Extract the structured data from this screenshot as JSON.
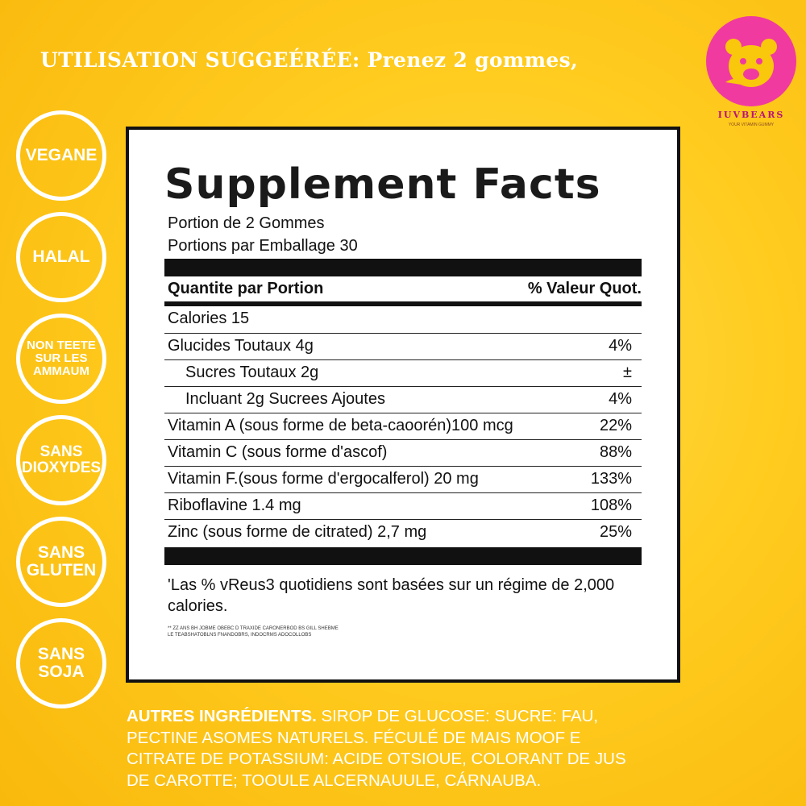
{
  "usage_text": "UTILISATION SUGGEÉRÉE: Prenez 2 gommes,",
  "brand": {
    "name": "IUVBEARS",
    "tagline": "YOUR VITAMIN GUMMY",
    "colors": {
      "circle": "#f03aa0",
      "text": "#b8127a"
    }
  },
  "badges": [
    {
      "lines": [
        "VEGANE"
      ]
    },
    {
      "lines": [
        "HALAL"
      ]
    },
    {
      "lines": [
        "NON TEETE",
        "SUR LES",
        "AMMAUM"
      ]
    },
    {
      "lines": [
        "SANS",
        "DIOXYDES"
      ]
    },
    {
      "lines": [
        "SANS",
        "GLUTEN"
      ]
    },
    {
      "lines": [
        "SANS",
        "SOJA"
      ]
    }
  ],
  "facts": {
    "title": "Supplement Facts",
    "serving_size": "Portion de 2 Gommes",
    "servings_per_container": "Portions par Emballage 30",
    "header_left": "Quantite par Portion",
    "header_right": "% Valeur Quot.",
    "rows": [
      {
        "label": "Calories 15",
        "value": ""
      },
      {
        "label": "Glucides Toutaux 4g",
        "value": "4%"
      },
      {
        "label": "Sucres Toutaux 2g",
        "value": "±"
      },
      {
        "label": "Incluant 2g Sucrees Ajoutes",
        "value": "4%"
      },
      {
        "label": "Vitamin A (sous forme de beta-caoorén)100 mcg",
        "value": "22%"
      },
      {
        "label": "Vitamin C (sous forme d'ascof)",
        "value": "88%"
      },
      {
        "label": "Vitamin F.(sous forme d'ergocalferol) 20 mg",
        "value": "133%"
      },
      {
        "label": "Riboflavine 1.4 mg",
        "value": "108%"
      },
      {
        "label": "Zinc (sous forme de citrated) 2,7 mg",
        "value": "25%"
      }
    ],
    "footnote": "'Las % vReus3 quotidiens sont basées sur un régime de 2,000 calories.",
    "fine_print": [
      "** ZZ ANS BH JOBME OBEBC D TRAXIDE CARONERBOD BS GILL SHEBME",
      "LE TEABSHATOBLNS FNANDOBRS, INDOCRMS ADOCOLLOBS"
    ]
  },
  "ingredients": {
    "heading": "AUTRES INGRÉDIENTS.",
    "text": "SIROP DE GLUCOSE: SUCRE: FAU, PECTINE ASOMES NATURELS. FÉCULÉ DE MAIS MOOF E CITRATE DE POTASSIUM: ACIDE OTSIOUE, COLORANT DE JUS DE CAROTTE; TOOULE ALCERNAUULE, CÁRNAUBA."
  }
}
